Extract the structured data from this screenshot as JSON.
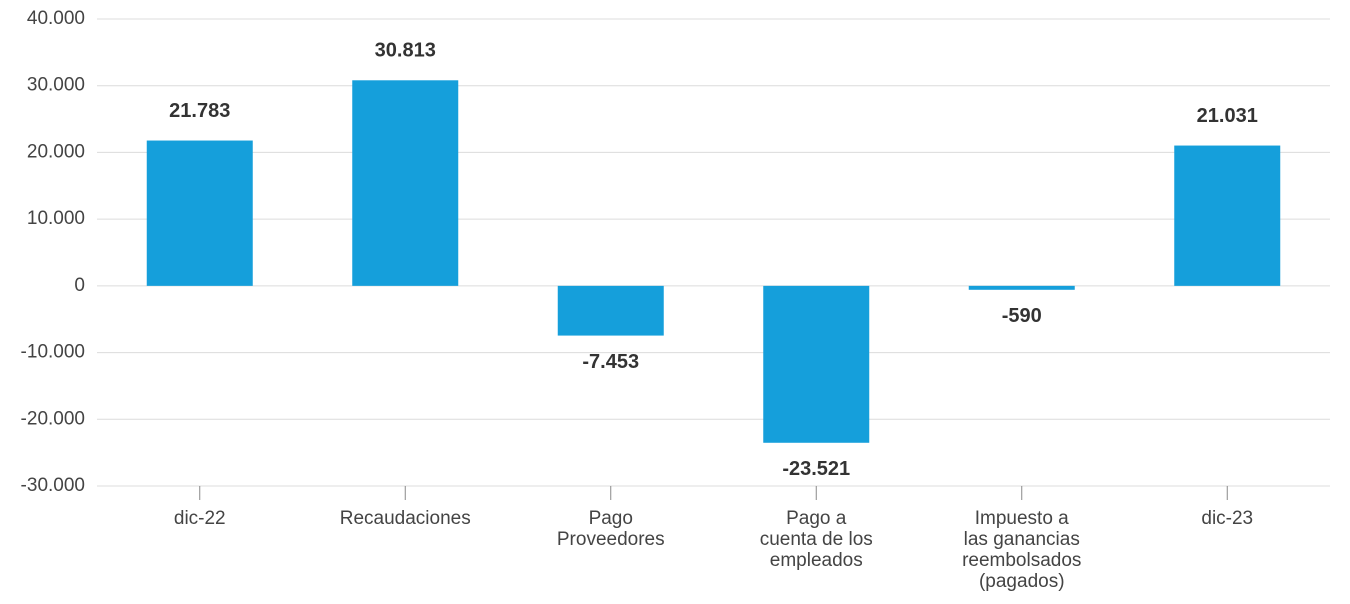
{
  "chart_data": {
    "type": "bar",
    "categories": [
      "dic-22",
      "Recaudaciones",
      "Pago\nProveedores",
      "Pago a\ncuenta de los\nempleados",
      "Impuesto a\nlas ganancias\nreembolsados\n(pagados)",
      "dic-23"
    ],
    "values": [
      21783,
      30813,
      -7453,
      -23521,
      -590,
      21031
    ],
    "value_labels": [
      "21.783",
      "30.813",
      "-7.453",
      "-23.521",
      "-590",
      "21.031"
    ],
    "color": "#159fdb",
    "ylim": [
      -30000,
      40000
    ],
    "yticks": [
      {
        "value": -30000,
        "label": "-30.000"
      },
      {
        "value": -20000,
        "label": "-20.000"
      },
      {
        "value": -10000,
        "label": "-10.000"
      },
      0,
      {
        "value": 10000,
        "label": "10.000"
      },
      {
        "value": 20000,
        "label": "20.000"
      },
      {
        "value": 30000,
        "label": "30.000"
      },
      {
        "value": 40000,
        "label": "40.000"
      }
    ],
    "grid": true
  }
}
